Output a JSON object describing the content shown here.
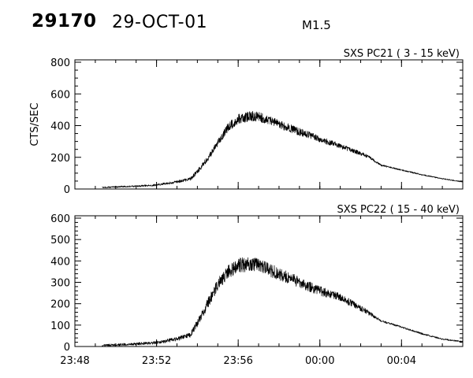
{
  "header": {
    "event_id": "29170",
    "date": "29-OCT-01",
    "flare_class": "M1.5"
  },
  "chart_data": [
    {
      "type": "line",
      "title": "SXS PC21  (  3 - 15 keV)",
      "ylabel": "CTS/SEC",
      "xlabel": "",
      "xlim": [
        "23:48",
        "00:07"
      ],
      "ylim": [
        0,
        800
      ],
      "yticks": [
        "0",
        "200",
        "400",
        "600",
        "800"
      ],
      "x": [
        "23:49:20",
        "23:51",
        "23:52",
        "23:53",
        "23:53:40",
        "23:54",
        "23:54:30",
        "23:55",
        "23:55:30",
        "23:56",
        "23:56:30",
        "23:57",
        "23:57:30",
        "23:58",
        "23:58:30",
        "23:59",
        "23:59:30",
        "00:00",
        "00:01",
        "00:02",
        "00:02:30",
        "00:03",
        "00:04",
        "00:05",
        "00:06",
        "00:07"
      ],
      "y": [
        10,
        18,
        25,
        45,
        65,
        110,
        190,
        290,
        390,
        440,
        460,
        455,
        435,
        410,
        385,
        360,
        340,
        315,
        270,
        225,
        195,
        150,
        120,
        90,
        65,
        45
      ],
      "noise_amplitude": [
        4,
        5,
        6,
        8,
        10,
        14,
        18,
        22,
        28,
        32,
        34,
        32,
        30,
        28,
        26,
        24,
        22,
        20,
        16,
        12,
        10,
        5,
        4,
        4,
        3,
        3
      ]
    },
    {
      "type": "line",
      "title": "SXS PC22  ( 15 - 40 keV)",
      "ylabel": "",
      "xlabel": "",
      "xlim": [
        "23:48",
        "00:07"
      ],
      "ylim": [
        0,
        600
      ],
      "yticks": [
        "0",
        "100",
        "200",
        "300",
        "400",
        "500",
        "600"
      ],
      "xticks": [
        "23:48",
        "23:52",
        "23:56",
        "00:00",
        "00:04"
      ],
      "x": [
        "23:49:20",
        "23:51",
        "23:52",
        "23:53",
        "23:53:40",
        "23:54",
        "23:54:30",
        "23:55",
        "23:55:30",
        "23:56",
        "23:56:30",
        "23:57",
        "23:57:30",
        "23:58",
        "23:58:30",
        "23:59",
        "23:59:30",
        "00:00",
        "00:01",
        "00:02",
        "00:02:30",
        "00:03",
        "00:04",
        "00:05",
        "00:06",
        "00:07"
      ],
      "y": [
        5,
        12,
        18,
        35,
        55,
        110,
        200,
        290,
        350,
        380,
        385,
        380,
        360,
        340,
        320,
        300,
        280,
        260,
        230,
        180,
        150,
        120,
        90,
        60,
        35,
        22
      ],
      "noise_amplitude": [
        5,
        6,
        7,
        9,
        12,
        18,
        24,
        28,
        32,
        35,
        36,
        34,
        32,
        30,
        28,
        26,
        24,
        22,
        18,
        14,
        10,
        5,
        4,
        4,
        3,
        3
      ]
    }
  ]
}
